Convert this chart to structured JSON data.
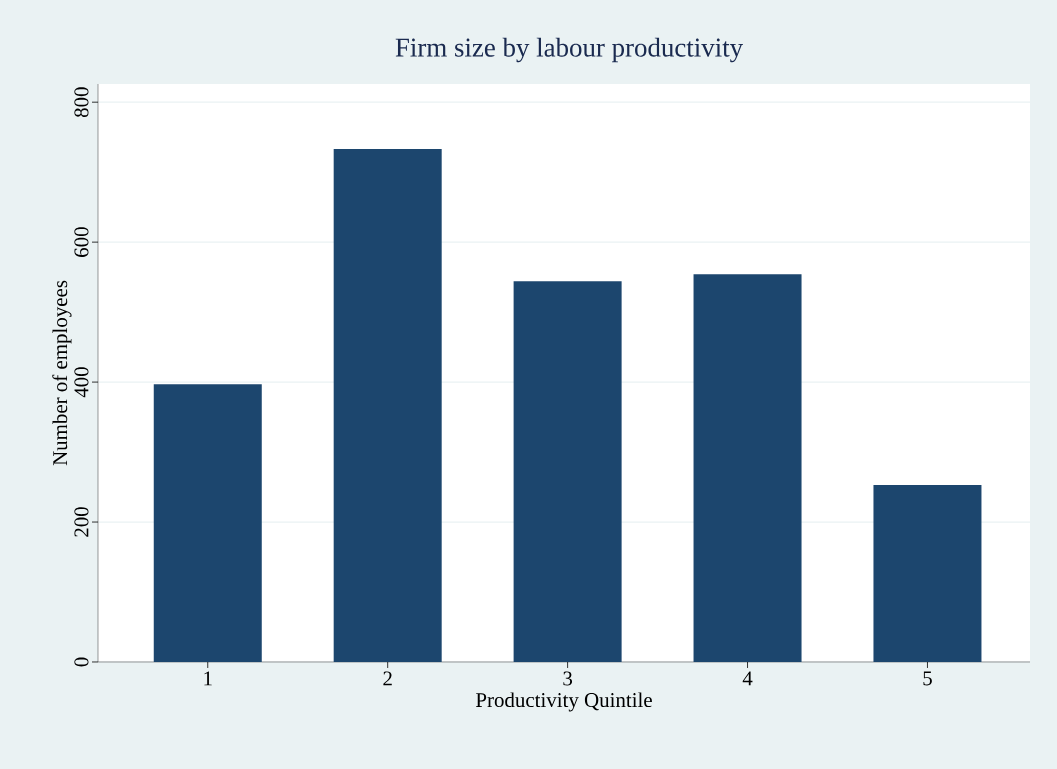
{
  "chart_data": {
    "type": "bar",
    "title": "Firm size by labour productivity",
    "xlabel": "Productivity Quintile",
    "ylabel": "Number of employees",
    "categories": [
      "1",
      "2",
      "3",
      "4",
      "5"
    ],
    "values": [
      397,
      733,
      544,
      554,
      253
    ],
    "color": "#1c466e",
    "ylim": [
      0,
      826
    ],
    "yticks": [
      0,
      200,
      400,
      600,
      800
    ],
    "grid": "y"
  }
}
